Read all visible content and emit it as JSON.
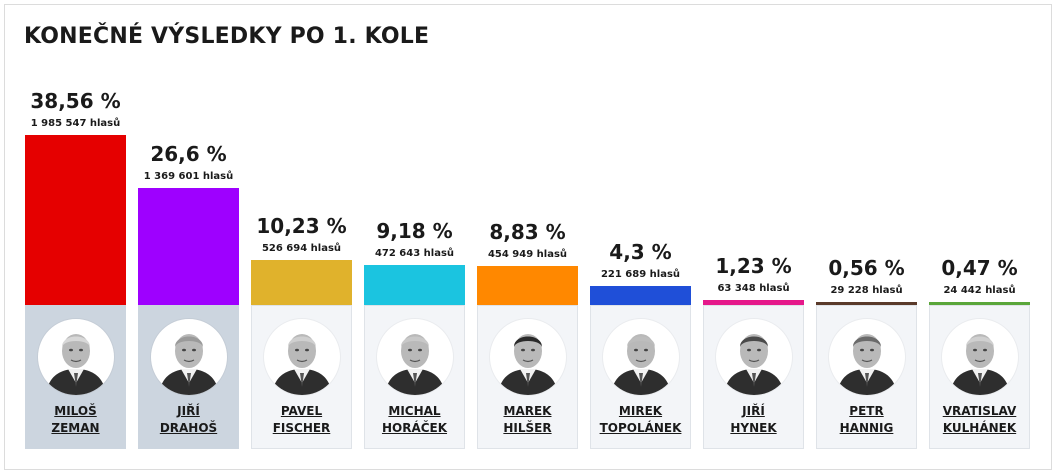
{
  "title": "KONEČNÉ VÝSLEDKY PO 1. KOLE",
  "chart_data": {
    "type": "bar",
    "title": "KONEČNÉ VÝSLEDKY PO 1. KOLE",
    "ylim": [
      0,
      38.56
    ],
    "grid": false,
    "categories": [
      "MILOŠ ZEMAN",
      "JIŘÍ DRAHOŠ",
      "PAVEL FISCHER",
      "MICHAL HORÁČEK",
      "MAREK HILŠER",
      "MIREK TOPOLÁNEK",
      "JIŘÍ HYNEK",
      "PETR HANNIG",
      "VRATISLAV KULHÁNEK"
    ],
    "values": [
      38.56,
      26.6,
      10.23,
      9.18,
      8.83,
      4.3,
      1.23,
      0.56,
      0.47
    ],
    "candidates": [
      {
        "first": "MILOŠ",
        "last": "ZEMAN",
        "pct_label": "38,56 %",
        "votes_label": "1 985 547 hlasů",
        "pct": 38.56,
        "color": "#e50000",
        "highlight": true
      },
      {
        "first": "JIŘÍ",
        "last": "DRAHOŠ",
        "pct_label": "26,6 %",
        "votes_label": "1 369 601 hlasů",
        "pct": 26.6,
        "color": "#9e00ff",
        "highlight": true
      },
      {
        "first": "PAVEL",
        "last": "FISCHER",
        "pct_label": "10,23 %",
        "votes_label": "526 694 hlasů",
        "pct": 10.23,
        "color": "#e0b22c",
        "highlight": false
      },
      {
        "first": "MICHAL",
        "last": "HORÁČEK",
        "pct_label": "9,18 %",
        "votes_label": "472 643 hlasů",
        "pct": 9.18,
        "color": "#1bc4e0",
        "highlight": false
      },
      {
        "first": "MAREK",
        "last": "HILŠER",
        "pct_label": "8,83 %",
        "votes_label": "454 949 hlasů",
        "pct": 8.83,
        "color": "#ff8800",
        "highlight": false
      },
      {
        "first": "MIREK",
        "last": "TOPOLÁNEK",
        "pct_label": "4,3 %",
        "votes_label": "221 689 hlasů",
        "pct": 4.3,
        "color": "#1f4fd8",
        "highlight": false
      },
      {
        "first": "JIŘÍ",
        "last": "HYNEK",
        "pct_label": "1,23 %",
        "votes_label": "63 348 hlasů",
        "pct": 1.23,
        "color": "#e5188a",
        "highlight": false
      },
      {
        "first": "PETR",
        "last": "HANNIG",
        "pct_label": "0,56 %",
        "votes_label": "29 228 hlasů",
        "pct": 0.56,
        "color": "#5a3a2a",
        "highlight": false
      },
      {
        "first": "VRATISLAV",
        "last": "KULHÁNEK",
        "pct_label": "0,47 %",
        "votes_label": "24 442 hlasů",
        "pct": 0.47,
        "color": "#5aa63a",
        "highlight": false
      }
    ]
  }
}
